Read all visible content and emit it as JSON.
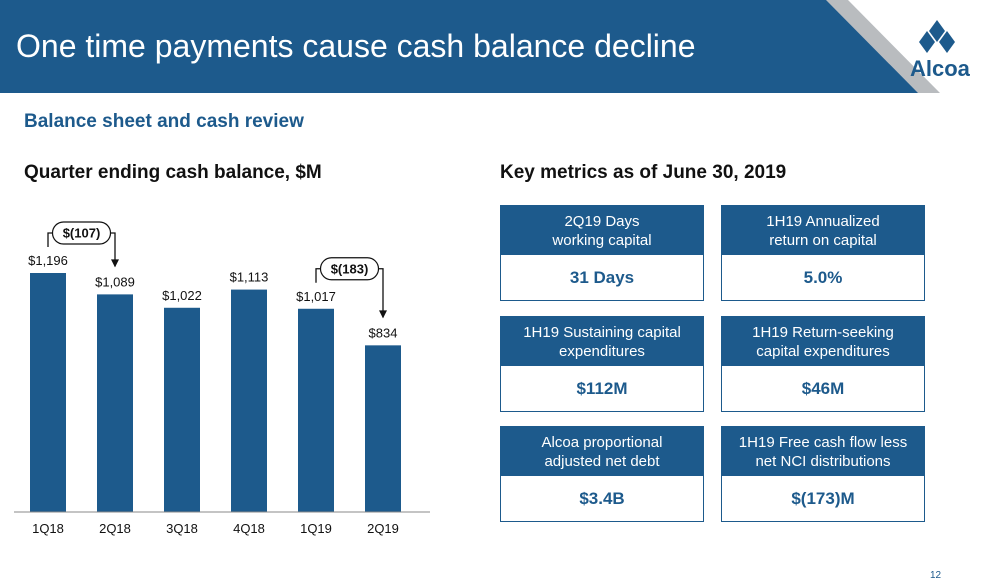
{
  "header": {
    "title": "One time payments cause cash balance decline",
    "logo_text": "Alcoa"
  },
  "subheading": "Balance sheet and cash review",
  "chart_section_title": "Quarter ending cash balance, $M",
  "metrics_section_title": "Key metrics as of June 30, 2019",
  "chart_data": {
    "type": "bar",
    "categories": [
      "1Q18",
      "2Q18",
      "3Q18",
      "4Q18",
      "1Q19",
      "2Q19"
    ],
    "values": [
      1196,
      1089,
      1022,
      1113,
      1017,
      834
    ],
    "data_labels": [
      "$1,196",
      "$1,089",
      "$1,022",
      "$1,113",
      "$1,017",
      "$834"
    ],
    "ylim": [
      0,
      1300
    ],
    "bar_color": "#1d5a8c",
    "annotations": [
      {
        "from": "1Q18",
        "to": "2Q18",
        "label": "$(107)"
      },
      {
        "from": "1Q19",
        "to": "2Q19",
        "label": "$(183)"
      }
    ]
  },
  "metrics": [
    {
      "title": "2Q19 Days working capital",
      "title_lines": [
        "2Q19 Days",
        "working capital"
      ],
      "value": "31 Days"
    },
    {
      "title": "1H19 Annualized return on capital",
      "title_lines": [
        "1H19 Annualized",
        "return on capital"
      ],
      "value": "5.0%"
    },
    {
      "title": "1H19 Sustaining capital expenditures",
      "title_lines": [
        "1H19 Sustaining capital",
        "expenditures"
      ],
      "value": "$112M"
    },
    {
      "title": "1H19 Return-seeking capital expenditures",
      "title_lines": [
        "1H19 Return-seeking",
        "capital expenditures"
      ],
      "value": "$46M"
    },
    {
      "title": "Alcoa proportional adjusted net debt",
      "title_lines": [
        "Alcoa proportional",
        "adjusted net debt"
      ],
      "value": "$3.4B"
    },
    {
      "title": "1H19 Free cash flow less net NCI distributions",
      "title_lines": [
        "1H19 Free cash flow less",
        "net NCI distributions"
      ],
      "value": "$(173)M"
    }
  ],
  "page_number": "12",
  "colors": {
    "brand_blue": "#1d5a8c",
    "logo_gray": "#b9bcbf"
  }
}
